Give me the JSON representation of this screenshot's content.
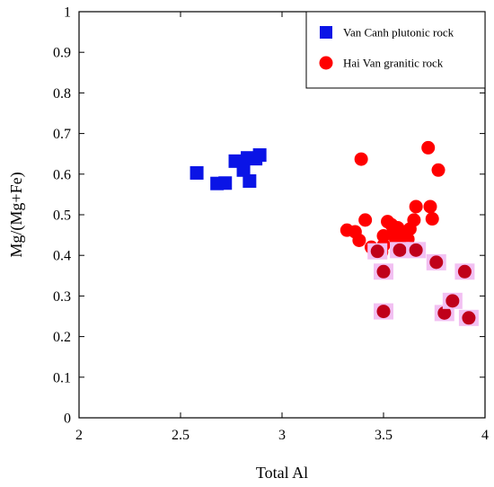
{
  "chart_data": {
    "type": "scatter",
    "xlabel": "Total Al",
    "ylabel": "Mg/(Mg+Fe)",
    "xlim": [
      2,
      4
    ],
    "ylim": [
      0,
      1
    ],
    "xticks": [
      "2",
      "2.5",
      "3",
      "3.5",
      "4"
    ],
    "yticks": [
      "0",
      "0.1",
      "0.2",
      "0.3",
      "0.4",
      "0.5",
      "0.6",
      "0.7",
      "0.8",
      "0.9",
      "1"
    ],
    "grid": false,
    "legend_position": "top-right",
    "series": [
      {
        "name": "Van Canh plutonic rock",
        "marker": "square",
        "color": "#0a14e6",
        "points": [
          [
            2.58,
            0.603
          ],
          [
            2.68,
            0.577
          ],
          [
            2.72,
            0.578
          ],
          [
            2.77,
            0.632
          ],
          [
            2.81,
            0.61
          ],
          [
            2.83,
            0.64
          ],
          [
            2.84,
            0.583
          ],
          [
            2.87,
            0.638
          ],
          [
            2.89,
            0.647
          ]
        ]
      },
      {
        "name": "Hai Van granitic rock",
        "marker": "circle",
        "color": "#ff0000",
        "points": [
          [
            3.32,
            0.462
          ],
          [
            3.36,
            0.458
          ],
          [
            3.38,
            0.437
          ],
          [
            3.39,
            0.637
          ],
          [
            3.41,
            0.487
          ],
          [
            3.44,
            0.42
          ],
          [
            3.46,
            0.41
          ],
          [
            3.49,
            0.408
          ],
          [
            3.5,
            0.448
          ],
          [
            3.5,
            0.425
          ],
          [
            3.52,
            0.483
          ],
          [
            3.54,
            0.475
          ],
          [
            3.55,
            0.463
          ],
          [
            3.56,
            0.44
          ],
          [
            3.57,
            0.468
          ],
          [
            3.58,
            0.455
          ],
          [
            3.59,
            0.412
          ],
          [
            3.6,
            0.43
          ],
          [
            3.61,
            0.445
          ],
          [
            3.62,
            0.44
          ],
          [
            3.63,
            0.465
          ],
          [
            3.65,
            0.487
          ],
          [
            3.66,
            0.52
          ],
          [
            3.72,
            0.665
          ],
          [
            3.73,
            0.52
          ],
          [
            3.74,
            0.49
          ],
          [
            3.77,
            0.61
          ]
        ]
      },
      {
        "name": "",
        "marker": "circle",
        "color": "#c0001a",
        "halo": "#f2c0f2",
        "points": [
          [
            3.47,
            0.41
          ],
          [
            3.5,
            0.36
          ],
          [
            3.5,
            0.262
          ],
          [
            3.58,
            0.413
          ],
          [
            3.66,
            0.413
          ],
          [
            3.76,
            0.383
          ],
          [
            3.8,
            0.258
          ],
          [
            3.84,
            0.288
          ],
          [
            3.9,
            0.36
          ],
          [
            3.92,
            0.246
          ]
        ]
      }
    ]
  }
}
